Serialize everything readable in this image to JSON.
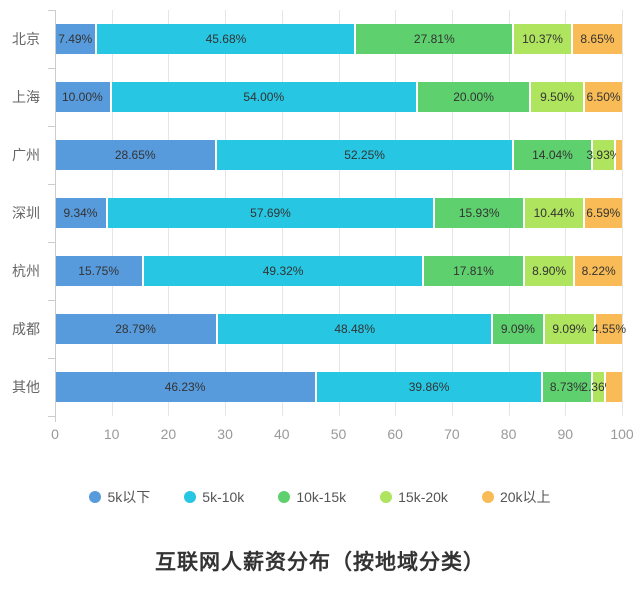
{
  "chart_data": {
    "type": "bar",
    "subtype": "horizontal-stacked",
    "title": "互联网人薪资分布（按地域分类）",
    "categories": [
      "北京",
      "上海",
      "广州",
      "深圳",
      "杭州",
      "成都",
      "其他"
    ],
    "series": [
      {
        "name": "5k以下",
        "color": "#579bdc",
        "values": [
          7.49,
          10.0,
          28.65,
          9.34,
          15.75,
          28.79,
          46.23
        ],
        "labels": [
          "7.49%",
          "10.00%",
          "28.65%",
          "9.34%",
          "15.75%",
          "28.79%",
          "46.23%"
        ]
      },
      {
        "name": "5k-10k",
        "color": "#27c6e2",
        "values": [
          45.68,
          54.0,
          52.25,
          57.69,
          49.32,
          48.48,
          39.86
        ],
        "labels": [
          "45.68%",
          "54.00%",
          "52.25%",
          "57.69%",
          "49.32%",
          "48.48%",
          "39.86%"
        ]
      },
      {
        "name": "10k-15k",
        "color": "#5ed06e",
        "values": [
          27.81,
          20.0,
          14.04,
          15.93,
          17.81,
          9.09,
          8.73
        ],
        "labels": [
          "27.81%",
          "20.00%",
          "14.04%",
          "15.93%",
          "17.81%",
          "9.09%",
          "8.73%"
        ]
      },
      {
        "name": "15k-20k",
        "color": "#aee45e",
        "values": [
          10.37,
          9.5,
          3.93,
          10.44,
          8.9,
          9.09,
          2.36
        ],
        "labels": [
          "10.37%",
          "9.50%",
          "3.93%",
          "10.44%",
          "8.90%",
          "9.09%",
          "2.36%"
        ]
      },
      {
        "name": "20k以上",
        "color": "#f8bb55",
        "values": [
          8.65,
          6.5,
          1.13,
          6.59,
          8.22,
          4.55,
          2.82
        ],
        "labels": [
          "8.65%",
          "6.50%",
          "",
          "6.59%",
          "8.22%",
          "4.55%",
          ""
        ]
      }
    ],
    "x_axis": {
      "ticks": [
        0,
        10,
        20,
        30,
        40,
        50,
        60,
        70,
        80,
        90,
        100
      ],
      "min": 0,
      "max": 100
    },
    "legend_position": "bottom",
    "grid": true
  }
}
